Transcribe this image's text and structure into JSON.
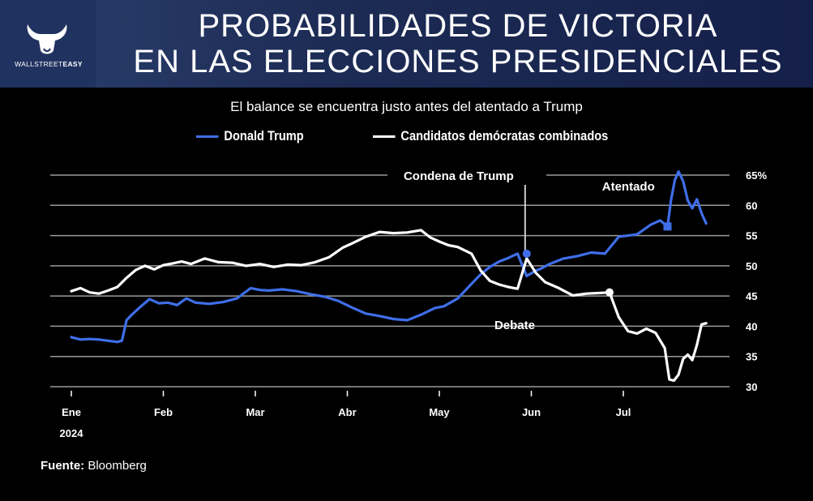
{
  "header": {
    "title_line1": "PROBABILIDADES DE VICTORIA",
    "title_line2": "EN LAS ELECCIONES PRESIDENCIALES",
    "logo_text_light": "WALLSTREET",
    "logo_text_bold": "EASY"
  },
  "colors": {
    "trump": "#3f6ee8",
    "democrats": "#ffffff",
    "grid": "#9a9a9a",
    "annotation_line": "#cccccc"
  },
  "source": {
    "label": "Fuente:",
    "value": "Bloomberg"
  },
  "chart_data": {
    "type": "line",
    "title": "El balance se encuentra justo antes del atentado a Trump",
    "xlabel": "",
    "ylabel": "",
    "ylim": [
      30,
      65
    ],
    "xlim": [
      0,
      7
    ],
    "yticks": [
      30,
      35,
      40,
      45,
      50,
      55,
      60,
      65
    ],
    "ytick_labels": [
      "30",
      "35",
      "40",
      "45",
      "50",
      "55",
      "60",
      "65%"
    ],
    "xticks": [
      0,
      1,
      2,
      3,
      4,
      5,
      6
    ],
    "xtick_labels": [
      "Ene",
      "Feb",
      "Mar",
      "Abr",
      "May",
      "Jun",
      "Jul"
    ],
    "xtick_sublabel": "2024",
    "grid": true,
    "legend_position": "top",
    "series": [
      {
        "name": "Donald Trump",
        "color": "#3f6ee8",
        "x": [
          0.0,
          0.1,
          0.2,
          0.3,
          0.4,
          0.5,
          0.55,
          0.6,
          0.65,
          0.75,
          0.85,
          0.95,
          1.05,
          1.15,
          1.25,
          1.35,
          1.5,
          1.65,
          1.8,
          1.95,
          2.05,
          2.15,
          2.3,
          2.45,
          2.6,
          2.75,
          2.9,
          3.05,
          3.2,
          3.35,
          3.5,
          3.65,
          3.8,
          3.95,
          4.05,
          4.2,
          4.35,
          4.45,
          4.55,
          4.65,
          4.75,
          4.85,
          4.95,
          5.05,
          5.1,
          5.2,
          5.35,
          5.5,
          5.65,
          5.8,
          5.95,
          6.05,
          6.15,
          6.3,
          6.4,
          6.48,
          6.52,
          6.56,
          6.6,
          6.65,
          6.7,
          6.75,
          6.8,
          6.85,
          6.9
        ],
        "y": [
          38.2,
          37.8,
          37.9,
          37.8,
          37.6,
          37.4,
          37.6,
          41.0,
          41.8,
          43.2,
          44.5,
          43.8,
          43.9,
          43.5,
          44.6,
          43.9,
          43.7,
          44.0,
          44.6,
          46.3,
          46.0,
          45.9,
          46.1,
          45.8,
          45.3,
          44.9,
          44.2,
          43.1,
          42.1,
          41.7,
          41.2,
          41.0,
          41.9,
          43.0,
          43.3,
          44.6,
          47.0,
          48.6,
          49.8,
          50.7,
          51.3,
          52.0,
          48.3,
          49.2,
          49.5,
          50.3,
          51.2,
          51.6,
          52.2,
          52.0,
          54.8,
          55.0,
          55.2,
          56.8,
          57.5,
          56.5,
          61.0,
          64.2,
          65.6,
          64.0,
          60.8,
          59.5,
          61.0,
          58.7,
          57.0
        ]
      },
      {
        "name": "Candidatos demócratas combinados",
        "color": "#ffffff",
        "x": [
          0.0,
          0.1,
          0.2,
          0.3,
          0.4,
          0.5,
          0.6,
          0.7,
          0.8,
          0.9,
          1.0,
          1.1,
          1.2,
          1.3,
          1.45,
          1.6,
          1.75,
          1.9,
          2.05,
          2.2,
          2.35,
          2.5,
          2.65,
          2.8,
          2.95,
          3.05,
          3.2,
          3.35,
          3.5,
          3.65,
          3.8,
          3.9,
          4.0,
          4.1,
          4.2,
          4.35,
          4.45,
          4.55,
          4.65,
          4.75,
          4.85,
          4.95,
          5.05,
          5.15,
          5.3,
          5.45,
          5.6,
          5.75,
          5.85,
          5.95,
          6.05,
          6.15,
          6.25,
          6.35,
          6.45,
          6.5,
          6.55,
          6.6,
          6.65,
          6.7,
          6.75,
          6.8,
          6.85,
          6.9
        ],
        "y": [
          45.8,
          46.3,
          45.6,
          45.4,
          45.9,
          46.5,
          48.0,
          49.3,
          50.0,
          49.4,
          50.1,
          50.4,
          50.7,
          50.3,
          51.2,
          50.6,
          50.5,
          50.0,
          50.3,
          49.8,
          50.2,
          50.1,
          50.6,
          51.4,
          53.0,
          53.7,
          54.8,
          55.6,
          55.4,
          55.5,
          55.9,
          54.7,
          54.0,
          53.4,
          53.1,
          52.0,
          49.2,
          47.5,
          46.9,
          46.5,
          46.2,
          51.2,
          48.8,
          47.3,
          46.3,
          45.1,
          45.4,
          45.5,
          45.6,
          41.5,
          39.2,
          38.8,
          39.6,
          38.9,
          36.4,
          31.2,
          31.0,
          32.0,
          34.6,
          35.3,
          34.4,
          36.9,
          40.3,
          40.5
        ]
      }
    ],
    "annotations": [
      {
        "text": "Condena de Trump",
        "x": 4.95,
        "y": 52.0
      },
      {
        "text": "Atentado",
        "x": 6.5,
        "y": 59.5
      },
      {
        "text": "Debate",
        "x": 5.85,
        "y": 45.6
      }
    ]
  }
}
